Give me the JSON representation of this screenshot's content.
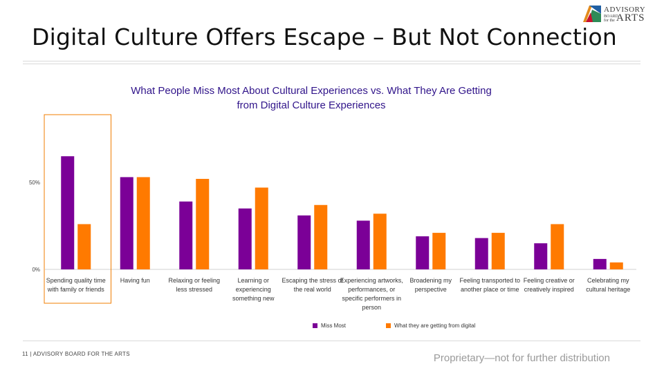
{
  "slide": {
    "title": "Digital Culture Offers Escape – But Not Connection",
    "logo_line1": "ADVISORY",
    "logo_small": "BOARD for the",
    "logo_line2": "ARTS"
  },
  "chart_data": {
    "type": "bar",
    "title_line1": "What People Miss Most About Cultural Experiences vs. What They Are Getting",
    "title_line2": "from Digital Culture Experiences",
    "categories": [
      "Spending quality time with family or friends",
      "Having fun",
      "Relaxing or feeling less stressed",
      "Learning or experiencing something new",
      "Escaping the stress of the real world",
      "Experiencing artworks, performances, or specific performers in person",
      "Broadening my perspective",
      "Feeling transported to another place or time",
      "Feeling creative or creatively inspired",
      "Celebrating my cultural heritage"
    ],
    "series": [
      {
        "name": "Miss Most",
        "color": "#7b0097",
        "values": [
          65,
          53,
          39,
          35,
          31,
          28,
          19,
          18,
          15,
          6
        ]
      },
      {
        "name": "What they are getting from digital",
        "color": "#ff7a00",
        "values": [
          26,
          53,
          52,
          47,
          37,
          32,
          21,
          21,
          26,
          4
        ]
      }
    ],
    "yticks": [
      "0%",
      "50%"
    ],
    "ylim": [
      0,
      100
    ],
    "highlight_category_index": 0,
    "highlight_color": "#f07c00",
    "legend_position": "bottom"
  },
  "footer": {
    "left": "11 | ADVISORY BOARD FOR THE ARTS",
    "right": "Proprietary—not for further distribution"
  }
}
